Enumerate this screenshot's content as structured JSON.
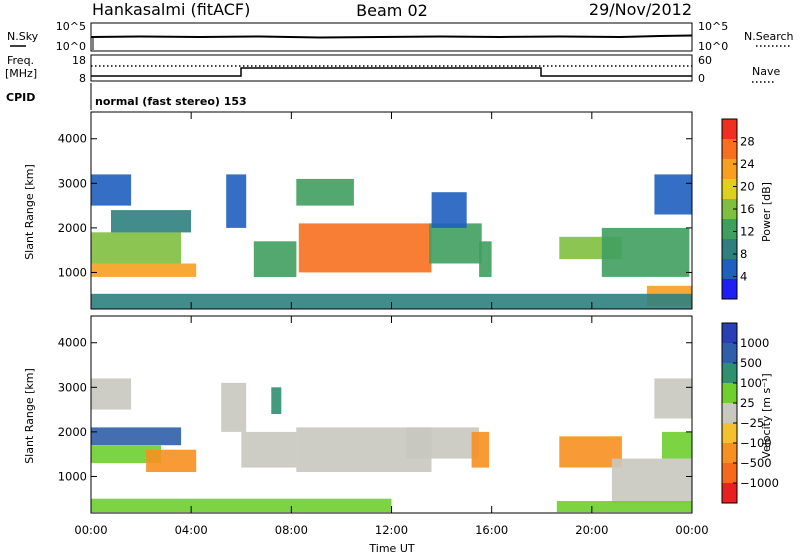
{
  "header": {
    "station": "Hankasalmi (fitACF)",
    "beam": "Beam 02",
    "date": "29/Nov/2012"
  },
  "status_panels": {
    "noise_sky_label": "N.Sky",
    "noise_search_label": "N.Search",
    "noise_ticks": [
      "10^5",
      "10^0"
    ],
    "freq_label_line1": "Freq.",
    "freq_label_line2": "[MHz]",
    "freq_ticks": [
      "18",
      "8"
    ],
    "nave_label": "Nave",
    "nave_ticks": [
      "60",
      "0"
    ],
    "cpid_label": "CPID",
    "cpid_text": "normal (fast stereo) 153"
  },
  "chart_data": [
    {
      "type": "heatmap",
      "name": "power",
      "ylabel": "Slant Range [km]",
      "xlabel": "",
      "xticks": [
        "00:00",
        "04:00",
        "08:00",
        "12:00",
        "16:00",
        "20:00",
        "00:00"
      ],
      "xlim_hours": [
        0,
        24
      ],
      "ylim_km": [
        180,
        4600
      ],
      "yticks": [
        1000,
        2000,
        3000,
        4000
      ],
      "colorbar_label": "Power [dB]",
      "colorbar_ticks": [
        "28",
        "24",
        "20",
        "16",
        "12",
        "8",
        "4"
      ],
      "colorbar_range": [
        0,
        32
      ],
      "regions": [
        {
          "t0": 0.0,
          "t1": 4.2,
          "r0": 900,
          "r1": 1200,
          "value": 24
        },
        {
          "t0": 0.0,
          "t1": 3.6,
          "r0": 1200,
          "r1": 1900,
          "value": 16
        },
        {
          "t0": 0.8,
          "t1": 4.0,
          "r0": 1900,
          "r1": 2400,
          "value": 9
        },
        {
          "t0": 0.0,
          "t1": 1.6,
          "r0": 2500,
          "r1": 3200,
          "value": 6
        },
        {
          "t0": 5.4,
          "t1": 6.2,
          "r0": 2000,
          "r1": 3200,
          "value": 6
        },
        {
          "t0": 6.5,
          "t1": 8.2,
          "r0": 900,
          "r1": 1700,
          "value": 12
        },
        {
          "t0": 8.3,
          "t1": 13.6,
          "r0": 1000,
          "r1": 2100,
          "value": 25
        },
        {
          "t0": 8.2,
          "t1": 10.5,
          "r0": 2500,
          "r1": 3100,
          "value": 12
        },
        {
          "t0": 13.5,
          "t1": 15.6,
          "r0": 1200,
          "r1": 2100,
          "value": 14
        },
        {
          "t0": 13.6,
          "t1": 15.0,
          "r0": 2000,
          "r1": 2800,
          "value": 6
        },
        {
          "t0": 15.5,
          "t1": 16.0,
          "r0": 900,
          "r1": 1700,
          "value": 12
        },
        {
          "t0": 18.7,
          "t1": 21.2,
          "r0": 1300,
          "r1": 1800,
          "value": 15
        },
        {
          "t0": 20.4,
          "t1": 23.9,
          "r0": 900,
          "r1": 2000,
          "value": 14
        },
        {
          "t0": 22.2,
          "t1": 24.0,
          "r0": 250,
          "r1": 700,
          "value": 24
        },
        {
          "t0": 22.5,
          "t1": 24.0,
          "r0": 2300,
          "r1": 3200,
          "value": 6
        },
        {
          "t0": 0.0,
          "t1": 24.0,
          "r0": 180,
          "r1": 520,
          "value": 10
        }
      ]
    },
    {
      "type": "heatmap",
      "name": "velocity",
      "ylabel": "Slant Range [km]",
      "xlabel": "Time UT",
      "xticks": [
        "00:00",
        "04:00",
        "08:00",
        "12:00",
        "16:00",
        "20:00",
        "00:00"
      ],
      "xlim_hours": [
        0,
        24
      ],
      "ylim_km": [
        180,
        4600
      ],
      "yticks": [
        1000,
        2000,
        3000,
        4000
      ],
      "colorbar_label": "Velocity [m s⁻¹]",
      "colorbar_ticks": [
        "1000",
        "500",
        "100",
        "25",
        "−25",
        "−100",
        "−500",
        "−1000"
      ],
      "regions": [
        {
          "t0": 0.0,
          "t1": 3.6,
          "r0": 1700,
          "r1": 2100,
          "value": 500
        },
        {
          "t0": 0.0,
          "t1": 2.8,
          "r0": 1300,
          "r1": 1700,
          "value": 60
        },
        {
          "t0": 2.2,
          "t1": 4.2,
          "r0": 1100,
          "r1": 1600,
          "value": -200
        },
        {
          "t0": 0.0,
          "t1": 1.6,
          "r0": 2500,
          "r1": 3200,
          "value": 0
        },
        {
          "t0": 5.2,
          "t1": 6.2,
          "r0": 2000,
          "r1": 3100,
          "value": 0
        },
        {
          "t0": 6.0,
          "t1": 8.2,
          "r0": 1200,
          "r1": 2000,
          "value": 0
        },
        {
          "t0": 7.2,
          "t1": 7.6,
          "r0": 2400,
          "r1": 3000,
          "value": 300
        },
        {
          "t0": 8.2,
          "t1": 13.6,
          "r0": 1100,
          "r1": 2100,
          "value": 0
        },
        {
          "t0": 12.6,
          "t1": 15.5,
          "r0": 1400,
          "r1": 2100,
          "value": 0
        },
        {
          "t0": 15.2,
          "t1": 15.9,
          "r0": 1200,
          "r1": 2000,
          "value": -150
        },
        {
          "t0": 18.7,
          "t1": 21.2,
          "r0": 1200,
          "r1": 1900,
          "value": -200
        },
        {
          "t0": 20.8,
          "t1": 24.0,
          "r0": 400,
          "r1": 1400,
          "value": 0
        },
        {
          "t0": 22.8,
          "t1": 24.0,
          "r0": 1400,
          "r1": 2000,
          "value": 60
        },
        {
          "t0": 22.5,
          "t1": 24.0,
          "r0": 2300,
          "r1": 3200,
          "value": 0
        },
        {
          "t0": 0.0,
          "t1": 12.0,
          "r0": 200,
          "r1": 500,
          "value": 60
        },
        {
          "t0": 18.6,
          "t1": 24.0,
          "r0": 200,
          "r1": 450,
          "value": 60
        }
      ]
    }
  ]
}
